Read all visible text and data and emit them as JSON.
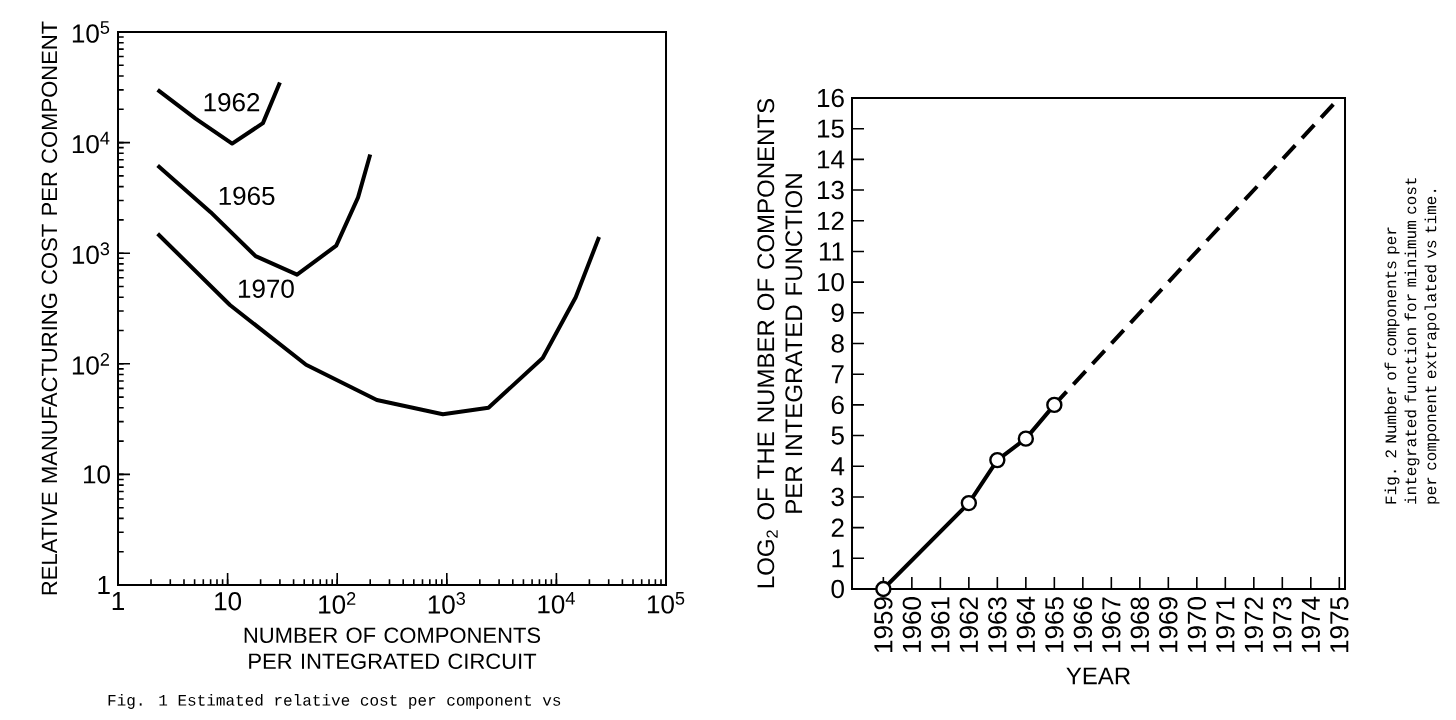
{
  "chart_data": [
    {
      "type": "line",
      "xlabel": "NUMBER OF COMPONENTS PER INTEGRATED CIRCUIT",
      "ylabel": "RELATIVE MANUFACTURING COST PER COMPONENT",
      "log": "xy",
      "xlim": [
        1,
        100000
      ],
      "ylim": [
        1,
        100000
      ],
      "xticks": [
        1,
        10,
        {
          "value": 100,
          "label": "10$^{2}$"
        },
        {
          "value": 1000,
          "label": "10$^{3}$"
        },
        {
          "value": 10000,
          "label": "10$^{4}$"
        },
        {
          "value": 100000,
          "label": "10$^{5}$"
        }
      ],
      "yticks": [
        1,
        10,
        {
          "value": 100,
          "label": "10$^{2}$"
        },
        {
          "value": 1000,
          "label": "10$^{3}$"
        },
        {
          "value": 10000,
          "label": "10$^{4}$"
        },
        {
          "value": 100000,
          "label": "10$^{5}$"
        }
      ],
      "annotations": [
        "Fig. 1  Estimated relative cost per component vs"
      ],
      "series": [
        {
          "name": "1962",
          "color": "#000000",
          "x": [
            2.3,
            5.1,
            11,
            21,
            30
          ],
          "values": [
            30000,
            16500,
            9800,
            15000,
            35000
          ]
        },
        {
          "name": "1965",
          "color": "#000000",
          "x": [
            2.3,
            7,
            18,
            43,
            98,
            155,
            200
          ],
          "values": [
            6200,
            2350,
            940,
            640,
            1170,
            3200,
            7800
          ]
        },
        {
          "name": "1970",
          "color": "#000000",
          "x": [
            2.3,
            10.5,
            52,
            230,
            920,
            2400,
            7500,
            15000,
            24500
          ],
          "values": [
            1500,
            340,
            98,
            47,
            35,
            40,
            113,
            400,
            1400
          ]
        }
      ]
    },
    {
      "type": "line",
      "xlabel": "YEAR",
      "ylabel": "LOG$_{2}$ OF THE NUMBER OF COMPONENTS PER INTEGRATED FUNCTION",
      "xlim": [
        1957.9,
        1975.2
      ],
      "ylim": [
        0,
        16
      ],
      "xticks": [
        1959,
        1960,
        1961,
        1962,
        1963,
        1964,
        1965,
        1966,
        1967,
        1968,
        1969,
        1970,
        1971,
        1972,
        1973,
        1974,
        1975
      ],
      "yticks": [
        0,
        1,
        2,
        3,
        4,
        5,
        6,
        7,
        8,
        9,
        10,
        11,
        12,
        13,
        14,
        15,
        16
      ],
      "annotations": [
        "Fig. 2   Number of components per integrated function for minimum cost per component extrapolated vs time."
      ],
      "series": [
        {
          "color": "#000000",
          "marker": "circle",
          "line_style": "solid",
          "x": [
            1959,
            1962,
            1963,
            1964,
            1965
          ],
          "values": [
            0,
            2.8,
            4.2,
            4.9,
            6.0
          ]
        },
        {
          "color": "#000000",
          "marker": "none",
          "line_style": "dashed",
          "x": [
            1965,
            1975
          ],
          "values": [
            6.0,
            16
          ]
        }
      ]
    }
  ]
}
